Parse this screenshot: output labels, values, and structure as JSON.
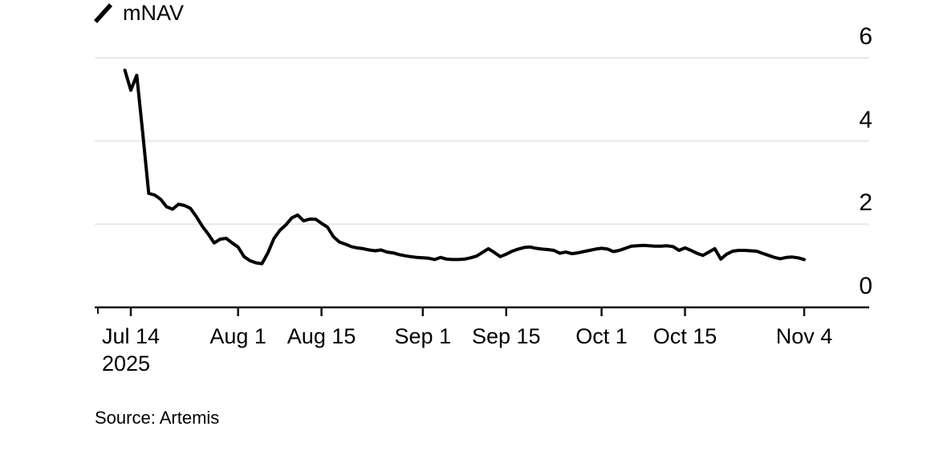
{
  "legend": {
    "series_label": "mNAV"
  },
  "source": {
    "text": "Source: Artemis"
  },
  "colors": {
    "line": "#000000",
    "grid": "#e8e8e8",
    "axis": "#111111",
    "text": "#000000",
    "background": "#ffffff"
  },
  "chart_data": {
    "type": "line",
    "title": "",
    "legend_entries": [
      "mNAV"
    ],
    "grid": "horizontal-only",
    "y_axis_position": "right",
    "x_axis": {
      "ticks": [
        {
          "label": "Jul 14",
          "year": "2025",
          "date": "2025-07-14"
        },
        {
          "label": "Aug 1",
          "date": "2025-08-01"
        },
        {
          "label": "Aug 15",
          "date": "2025-08-15"
        },
        {
          "label": "Sep 1",
          "date": "2025-09-01"
        },
        {
          "label": "Sep 15",
          "date": "2025-09-15"
        },
        {
          "label": "Oct 1",
          "date": "2025-10-01"
        },
        {
          "label": "Oct 15",
          "date": "2025-10-15"
        },
        {
          "label": "Nov 4",
          "date": "2025-11-04"
        }
      ]
    },
    "y_axis": {
      "range": [
        0,
        6
      ],
      "ticks": [
        {
          "label": "6",
          "value": 6
        },
        {
          "label": "4",
          "value": 4
        },
        {
          "label": "2",
          "value": 2
        },
        {
          "label": "0",
          "value": 0
        }
      ],
      "gridline_values": [
        6,
        4,
        2
      ]
    },
    "series": [
      {
        "name": "mNAV",
        "points": [
          [
            "2025-07-13",
            5.7
          ],
          [
            "2025-07-14",
            5.22
          ],
          [
            "2025-07-15",
            5.58
          ],
          [
            "2025-07-16",
            4.2
          ],
          [
            "2025-07-17",
            2.74
          ],
          [
            "2025-07-18",
            2.7
          ],
          [
            "2025-07-19",
            2.6
          ],
          [
            "2025-07-20",
            2.42
          ],
          [
            "2025-07-21",
            2.36
          ],
          [
            "2025-07-22",
            2.48
          ],
          [
            "2025-07-23",
            2.45
          ],
          [
            "2025-07-24",
            2.38
          ],
          [
            "2025-07-25",
            2.18
          ],
          [
            "2025-07-26",
            1.95
          ],
          [
            "2025-07-27",
            1.76
          ],
          [
            "2025-07-28",
            1.55
          ],
          [
            "2025-07-29",
            1.64
          ],
          [
            "2025-07-30",
            1.66
          ],
          [
            "2025-07-31",
            1.55
          ],
          [
            "2025-08-01",
            1.45
          ],
          [
            "2025-08-02",
            1.22
          ],
          [
            "2025-08-03",
            1.12
          ],
          [
            "2025-08-04",
            1.07
          ],
          [
            "2025-08-05",
            1.05
          ],
          [
            "2025-08-06",
            1.31
          ],
          [
            "2025-08-07",
            1.65
          ],
          [
            "2025-08-08",
            1.85
          ],
          [
            "2025-08-09",
            1.98
          ],
          [
            "2025-08-10",
            2.15
          ],
          [
            "2025-08-11",
            2.22
          ],
          [
            "2025-08-12",
            2.08
          ],
          [
            "2025-08-13",
            2.12
          ],
          [
            "2025-08-14",
            2.12
          ],
          [
            "2025-08-15",
            2.02
          ],
          [
            "2025-08-16",
            1.93
          ],
          [
            "2025-08-17",
            1.7
          ],
          [
            "2025-08-18",
            1.57
          ],
          [
            "2025-08-19",
            1.52
          ],
          [
            "2025-08-20",
            1.46
          ],
          [
            "2025-08-21",
            1.43
          ],
          [
            "2025-08-22",
            1.41
          ],
          [
            "2025-08-23",
            1.38
          ],
          [
            "2025-08-24",
            1.36
          ],
          [
            "2025-08-25",
            1.38
          ],
          [
            "2025-08-26",
            1.33
          ],
          [
            "2025-08-27",
            1.31
          ],
          [
            "2025-08-28",
            1.27
          ],
          [
            "2025-08-29",
            1.24
          ],
          [
            "2025-08-30",
            1.22
          ],
          [
            "2025-08-31",
            1.2
          ],
          [
            "2025-09-01",
            1.19
          ],
          [
            "2025-09-02",
            1.18
          ],
          [
            "2025-09-03",
            1.15
          ],
          [
            "2025-09-04",
            1.2
          ],
          [
            "2025-09-05",
            1.16
          ],
          [
            "2025-09-06",
            1.15
          ],
          [
            "2025-09-07",
            1.15
          ],
          [
            "2025-09-08",
            1.16
          ],
          [
            "2025-09-09",
            1.19
          ],
          [
            "2025-09-10",
            1.23
          ],
          [
            "2025-09-11",
            1.32
          ],
          [
            "2025-09-12",
            1.41
          ],
          [
            "2025-09-13",
            1.32
          ],
          [
            "2025-09-14",
            1.22
          ],
          [
            "2025-09-15",
            1.28
          ],
          [
            "2025-09-16",
            1.35
          ],
          [
            "2025-09-17",
            1.4
          ],
          [
            "2025-09-18",
            1.44
          ],
          [
            "2025-09-19",
            1.45
          ],
          [
            "2025-09-20",
            1.42
          ],
          [
            "2025-09-21",
            1.4
          ],
          [
            "2025-09-22",
            1.39
          ],
          [
            "2025-09-23",
            1.37
          ],
          [
            "2025-09-24",
            1.3
          ],
          [
            "2025-09-25",
            1.33
          ],
          [
            "2025-09-26",
            1.29
          ],
          [
            "2025-09-27",
            1.31
          ],
          [
            "2025-09-28",
            1.34
          ],
          [
            "2025-09-29",
            1.37
          ],
          [
            "2025-09-30",
            1.4
          ],
          [
            "2025-10-01",
            1.42
          ],
          [
            "2025-10-02",
            1.4
          ],
          [
            "2025-10-03",
            1.34
          ],
          [
            "2025-10-04",
            1.37
          ],
          [
            "2025-10-05",
            1.42
          ],
          [
            "2025-10-06",
            1.47
          ],
          [
            "2025-10-07",
            1.48
          ],
          [
            "2025-10-08",
            1.49
          ],
          [
            "2025-10-09",
            1.48
          ],
          [
            "2025-10-10",
            1.47
          ],
          [
            "2025-10-11",
            1.47
          ],
          [
            "2025-10-12",
            1.48
          ],
          [
            "2025-10-13",
            1.46
          ],
          [
            "2025-10-14",
            1.37
          ],
          [
            "2025-10-15",
            1.43
          ],
          [
            "2025-10-16",
            1.37
          ],
          [
            "2025-10-17",
            1.3
          ],
          [
            "2025-10-18",
            1.25
          ],
          [
            "2025-10-19",
            1.33
          ],
          [
            "2025-10-20",
            1.41
          ],
          [
            "2025-10-21",
            1.16
          ],
          [
            "2025-10-22",
            1.28
          ],
          [
            "2025-10-23",
            1.35
          ],
          [
            "2025-10-24",
            1.37
          ],
          [
            "2025-10-25",
            1.37
          ],
          [
            "2025-10-26",
            1.36
          ],
          [
            "2025-10-27",
            1.35
          ],
          [
            "2025-10-28",
            1.3
          ],
          [
            "2025-10-29",
            1.25
          ],
          [
            "2025-10-30",
            1.2
          ],
          [
            "2025-10-31",
            1.17
          ],
          [
            "2025-11-01",
            1.2
          ],
          [
            "2025-11-02",
            1.21
          ],
          [
            "2025-11-03",
            1.19
          ],
          [
            "2025-11-04",
            1.15
          ]
        ]
      }
    ]
  }
}
